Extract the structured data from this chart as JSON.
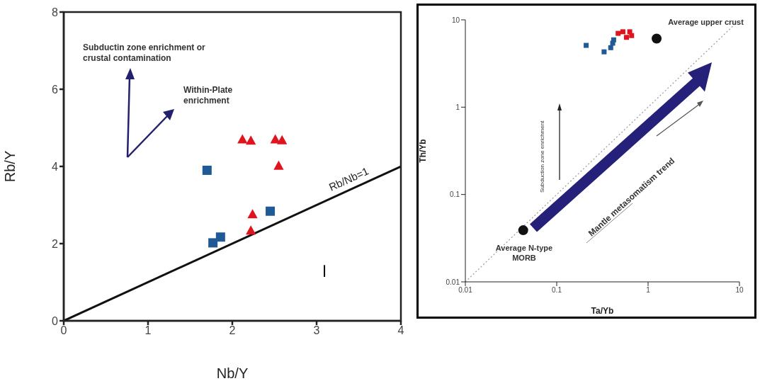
{
  "chart_data": [
    {
      "type": "scatter",
      "xlabel": "Nb/Y",
      "ylabel": "Rb/Y",
      "xlim": [
        0,
        4
      ],
      "ylim": [
        0,
        8
      ],
      "xticks": [
        0,
        1,
        2,
        3,
        4
      ],
      "yticks": [
        0,
        2,
        4,
        6,
        8
      ],
      "series": [
        {
          "color": "#1f5a96",
          "marker": "square",
          "x": [
            1.7,
            1.77,
            1.86,
            2.45
          ],
          "values": [
            3.9,
            2.02,
            2.17,
            2.84
          ]
        },
        {
          "color": "#e0141e",
          "marker": "triangle",
          "x": [
            2.12,
            2.22,
            2.51,
            2.59,
            2.55,
            2.24,
            2.22
          ],
          "values": [
            4.69,
            4.66,
            4.69,
            4.67,
            4.01,
            2.75,
            2.33
          ]
        },
        {
          "type": "line",
          "name": "Rb/Nb=1",
          "color": "#111111",
          "marker": "none",
          "line_style": "solid",
          "x": [
            0,
            4
          ],
          "values": [
            0,
            4
          ]
        }
      ],
      "annotations": [
        "Subductin zone enrichment or crustal contamination",
        "Within-Plate enrichment",
        "ا"
      ]
    },
    {
      "type": "scatter",
      "log": "xy",
      "xlabel": "Ta/Yb",
      "ylabel": "Th/Yb",
      "xlim": [
        0.01,
        10
      ],
      "ylim": [
        0.01,
        10
      ],
      "xticks": [
        0.01,
        0.1,
        1,
        10
      ],
      "yticks": [
        0.01,
        0.1,
        1,
        10
      ],
      "series": [
        {
          "color": "#1f5a96",
          "marker": "square",
          "x": [
            0.21,
            0.33,
            0.39,
            0.41,
            0.42
          ],
          "values": [
            5.1,
            4.3,
            4.8,
            5.4,
            5.9
          ]
        },
        {
          "color": "#e0141e",
          "marker": "square",
          "x": [
            0.47,
            0.53,
            0.59,
            0.63,
            0.66,
            0.58
          ],
          "values": [
            7.0,
            7.3,
            null,
            7.3,
            6.6,
            6.3
          ]
        },
        {
          "color": "#111111",
          "marker": "circle",
          "x": [
            0.043,
            1.24
          ],
          "values": [
            0.039,
            6.1
          ]
        },
        {
          "type": "line",
          "color": "#999999",
          "marker": "none",
          "line_style": "dotted",
          "x": [
            0.01,
            10
          ],
          "values": [
            0.01,
            10
          ]
        }
      ],
      "annotations": [
        {
          "text": "Average upper crust",
          "x": 1.24,
          "y": 6.1
        },
        {
          "text": "Average N-type MORB",
          "x": 0.043,
          "y": 0.039
        },
        "Mantle metasomatism trend",
        "Subduction zone enrichment"
      ]
    }
  ]
}
